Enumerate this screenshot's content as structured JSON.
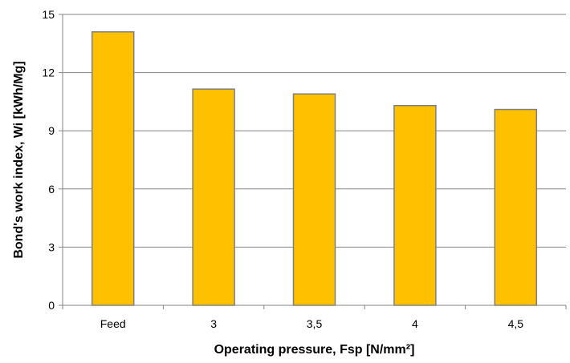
{
  "chart_data": {
    "type": "bar",
    "title": "",
    "xlabel": "Operating pressure, Fsp [N/mm²]",
    "ylabel": "Bond's work index, Wi [kWh/Mg]",
    "categories": [
      "Feed",
      "3",
      "3,5",
      "4",
      "4,5"
    ],
    "values": [
      14.1,
      11.15,
      10.9,
      10.3,
      10.1
    ],
    "ylim": [
      0,
      15
    ],
    "yticks": [
      0,
      3,
      6,
      9,
      12,
      15
    ],
    "ytick_labels": [
      "0",
      "3",
      "6",
      "9",
      "12",
      "15"
    ],
    "grid": true,
    "legend": "none",
    "colors": {
      "bar_fill": "#FFC000",
      "bar_stroke": "#7F7F7F",
      "grid": "#868686",
      "axis": "#868686"
    }
  }
}
